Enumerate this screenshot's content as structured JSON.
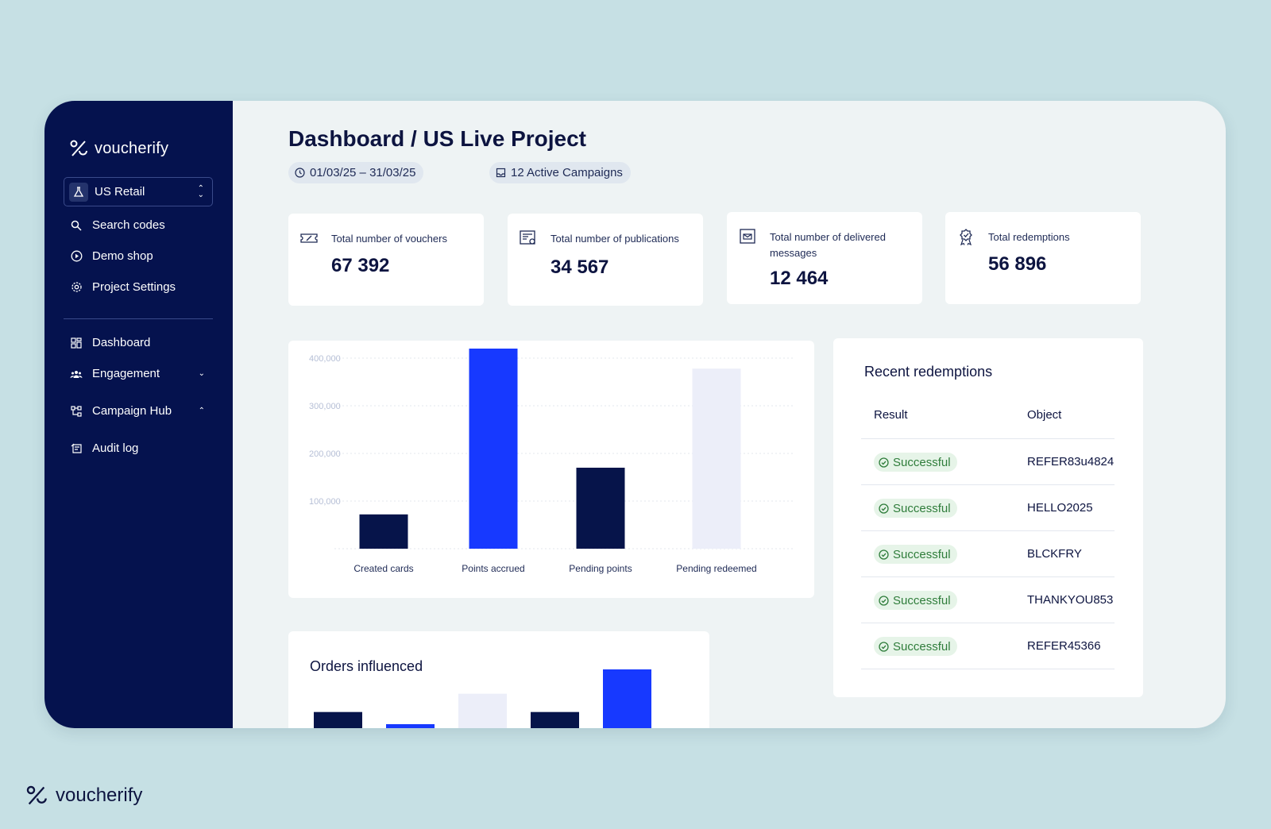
{
  "brand": {
    "wordmark": "voucherify"
  },
  "sidebar": {
    "project": "US Retail",
    "top_items": [
      {
        "label": "Search codes",
        "icon": "search-icon"
      },
      {
        "label": "Demo shop",
        "icon": "play-circle-icon"
      },
      {
        "label": "Project Settings",
        "icon": "gear-icon"
      }
    ],
    "items": [
      {
        "label": "Dashboard",
        "icon": "grid-icon"
      },
      {
        "label": "Engagement",
        "icon": "people-icon",
        "chevron": "down"
      },
      {
        "label": "Campaign Hub",
        "icon": "hub-icon",
        "chevron": "up"
      },
      {
        "label": "Audit log",
        "icon": "audit-icon"
      }
    ]
  },
  "header": {
    "title": "Dashboard / US Live Project",
    "date_range": "01/03/25 – 31/03/25",
    "campaigns": "12 Active Campaigns"
  },
  "stats": [
    {
      "label": "Total number of vouchers",
      "value": "67 392",
      "icon": "voucher-icon"
    },
    {
      "label": "Total number of publications",
      "value": "34 567",
      "icon": "publications-icon"
    },
    {
      "label": "Total number of delivered messages",
      "value": "12 464",
      "icon": "message-icon"
    },
    {
      "label": "Total redemptions",
      "value": "56 896",
      "icon": "award-icon"
    }
  ],
  "chart_data": [
    {
      "type": "bar",
      "categories": [
        "Created cards",
        "Points accrued",
        "Pending points",
        "Pending redeemed"
      ],
      "values": [
        72000,
        420000,
        170000,
        378000
      ],
      "colors": [
        "#06144a",
        "#1739ff",
        "#06144a",
        "#eceef9"
      ],
      "y_ticks": [
        "100,000",
        "200,000",
        "300,000",
        "400,000"
      ],
      "ylim": [
        0,
        420000
      ],
      "grid": true
    },
    {
      "type": "bar",
      "title": "Orders influenced",
      "values": [
        5,
        3,
        8,
        5,
        12
      ],
      "colors": [
        "#06144a",
        "#1739ff",
        "#eceef9",
        "#06144a",
        "#1739ff"
      ]
    }
  ],
  "redemptions": {
    "title": "Recent redemptions",
    "columns": [
      "Result",
      "Object"
    ],
    "rows": [
      {
        "result": "Successful",
        "object": "REFER83u4824"
      },
      {
        "result": "Successful",
        "object": "HELLO2025"
      },
      {
        "result": "Successful",
        "object": "BLCKFRY"
      },
      {
        "result": "Successful",
        "object": "THANKYOU853"
      },
      {
        "result": "Successful",
        "object": "REFER45366"
      }
    ]
  },
  "colors": {
    "sidebar": "#05124e",
    "accent": "#1739ff",
    "success": "#2f7d3b"
  }
}
